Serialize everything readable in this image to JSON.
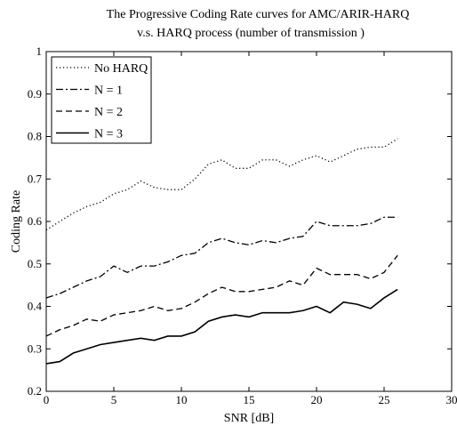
{
  "chart_data": {
    "type": "line",
    "title": [
      "The Progressive Coding Rate curves for AMC/ARIR-HARQ",
      "v.s. HARQ process (number of transmission )"
    ],
    "xlabel": "SNR [dB]",
    "ylabel": "Coding Rate",
    "xlim": [
      0,
      30
    ],
    "xticks": [
      0,
      5,
      10,
      15,
      20,
      25,
      30
    ],
    "ylim": [
      0.2,
      1
    ],
    "yticks": [
      0.2,
      0.3,
      0.4,
      0.5,
      0.6,
      0.7,
      0.8,
      0.9,
      1
    ],
    "legend": "upper left",
    "x": [
      0,
      1,
      2,
      3,
      4,
      5,
      6,
      7,
      8,
      9,
      10,
      11,
      12,
      13,
      14,
      15,
      16,
      17,
      18,
      19,
      20,
      21,
      22,
      23,
      24,
      25,
      26
    ],
    "series": [
      {
        "name": "No HARQ",
        "color": "#000000",
        "dash": "dotted",
        "values": [
          0.58,
          0.6,
          0.62,
          0.635,
          0.645,
          0.665,
          0.675,
          0.695,
          0.68,
          0.675,
          0.675,
          0.7,
          0.735,
          0.745,
          0.725,
          0.725,
          0.745,
          0.745,
          0.73,
          0.745,
          0.755,
          0.74,
          0.755,
          0.77,
          0.775,
          0.775,
          0.795
        ]
      },
      {
        "name": "N = 1",
        "color": "#000000",
        "dash": "dashdot",
        "values": [
          0.42,
          0.43,
          0.445,
          0.46,
          0.47,
          0.495,
          0.48,
          0.495,
          0.495,
          0.505,
          0.52,
          0.525,
          0.55,
          0.56,
          0.55,
          0.545,
          0.555,
          0.55,
          0.56,
          0.565,
          0.6,
          0.59,
          0.59,
          0.59,
          0.595,
          0.61,
          0.61
        ]
      },
      {
        "name": "N = 2",
        "color": "#000000",
        "dash": "dashed",
        "values": [
          0.33,
          0.345,
          0.355,
          0.37,
          0.365,
          0.38,
          0.385,
          0.39,
          0.4,
          0.39,
          0.395,
          0.41,
          0.43,
          0.445,
          0.435,
          0.435,
          0.44,
          0.445,
          0.46,
          0.45,
          0.49,
          0.475,
          0.475,
          0.475,
          0.465,
          0.48,
          0.52
        ]
      },
      {
        "name": "N = 3",
        "color": "#000000",
        "dash": "solid",
        "values": [
          0.265,
          0.27,
          0.29,
          0.3,
          0.31,
          0.315,
          0.32,
          0.325,
          0.32,
          0.33,
          0.33,
          0.34,
          0.365,
          0.375,
          0.38,
          0.375,
          0.385,
          0.385,
          0.385,
          0.39,
          0.4,
          0.385,
          0.41,
          0.405,
          0.395,
          0.42,
          0.44
        ]
      }
    ]
  }
}
